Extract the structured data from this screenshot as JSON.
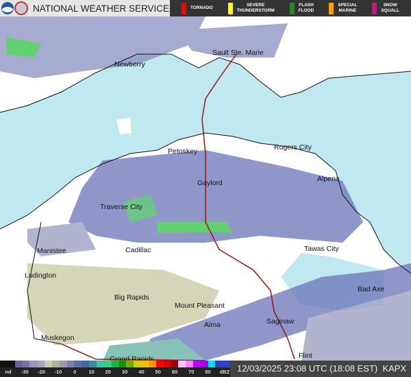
{
  "header": {
    "title": "NATIONAL WEATHER SERVICE",
    "logos": [
      "noaa-logo",
      "nws-logo"
    ]
  },
  "warnings": [
    {
      "label": "TORNADO",
      "color": "#ff0000"
    },
    {
      "label": "SEVERE\nTHUNDERSTORM",
      "color": "#ffff00"
    },
    {
      "label": "FLASH\nFLOOD",
      "color": "#228b22"
    },
    {
      "label": "SPECIAL\nMARINE",
      "color": "#ffa500"
    },
    {
      "label": "SNOW\nSQUALL",
      "color": "#c71585"
    }
  ],
  "cities": [
    "Newberry",
    "Sault Ste. Marie",
    "Petoskey",
    "Rogers City",
    "Gaylord",
    "Alpena",
    "Traverse City",
    "Manistee",
    "Cadillac",
    "Tawas City",
    "Ludington",
    "Big Rapids",
    "Mount Pleasant",
    "Bad Axe",
    "Saginaw",
    "Alma",
    "Muskegon",
    "Grand Rapids",
    "Flint"
  ],
  "scale": {
    "ticks": [
      "nd",
      "-30",
      "-20",
      "-10",
      "0",
      "10",
      "20",
      "30",
      "40",
      "50",
      "60",
      "70",
      "80",
      "dBZ"
    ],
    "colors": [
      "#111",
      "#111",
      "#6e5f9e",
      "#7b6fa8",
      "#9b96b8",
      "#a7a5be",
      "#c8c8a8",
      "#b0b090",
      "#9999aa",
      "#7c82a8",
      "#5a6ea8",
      "#4466aa",
      "#3a8aa0",
      "#40c0a0",
      "#30d080",
      "#20b040",
      "#109010",
      "#70b000",
      "#d0d000",
      "#f0c000",
      "#ff9800",
      "#ff0000",
      "#e00000",
      "#a00000",
      "#ffc0ff",
      "#ff80ff",
      "#c000ff",
      "#a000e0",
      "#00e0e0",
      "#3040c0",
      "#3040d0"
    ]
  },
  "timestamp": "12/03/2025 23:08 UTC (18:08 EST)",
  "radar": "KAPX"
}
